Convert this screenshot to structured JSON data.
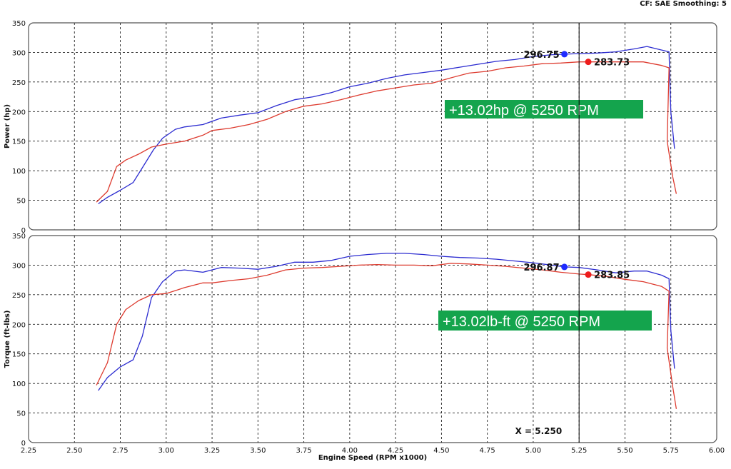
{
  "header": {
    "text": "CF: SAE  Smoothing: 5"
  },
  "chart_data": {
    "type": "line",
    "xlabel": "Engine Speed (RPM x1000)",
    "xlim": [
      2.25,
      6.0
    ],
    "x_ticks": [
      "2.25",
      "2.50",
      "2.75",
      "3.00",
      "3.25",
      "3.50",
      "3.75",
      "4.00",
      "4.25",
      "4.50",
      "4.75",
      "5.00",
      "5.25",
      "5.50",
      "5.75",
      "6.00"
    ],
    "cursor": {
      "x": 5.25,
      "label": "X = 5.250"
    },
    "colors": {
      "blue": "#2b2bd0",
      "red": "#dd3a2e",
      "gain_box": "#14a44d"
    },
    "panels": [
      {
        "id": "power",
        "ylabel": "Power (hp)",
        "ylim": [
          0,
          350
        ],
        "y_ticks": [
          "0",
          "50",
          "100",
          "150",
          "200",
          "250",
          "300",
          "350"
        ],
        "series": [
          {
            "color": "blue",
            "x": [
              2.63,
              2.68,
              2.75,
              2.82,
              2.87,
              2.93,
              2.98,
              3.05,
              3.1,
              3.2,
              3.3,
              3.4,
              3.5,
              3.6,
              3.7,
              3.8,
              3.9,
              4.0,
              4.1,
              4.2,
              4.3,
              4.4,
              4.5,
              4.6,
              4.7,
              4.8,
              4.9,
              5.0,
              5.1,
              5.17,
              5.25,
              5.35,
              5.45,
              5.55,
              5.62,
              5.7,
              5.74,
              5.75,
              5.77
            ],
            "y": [
              44,
              55,
              67,
              80,
              105,
              135,
              155,
              170,
              174,
              178,
              189,
              194,
              198,
              210,
              220,
              225,
              232,
              242,
              248,
              256,
              262,
              266,
              270,
              275,
              280,
              285,
              288,
              293,
              296,
              297,
              298,
              299,
              301,
              306,
              310,
              304,
              301,
              200,
              137
            ]
          },
          {
            "color": "red",
            "x": [
              2.62,
              2.68,
              2.73,
              2.78,
              2.85,
              2.92,
              3.0,
              3.1,
              3.2,
              3.25,
              3.35,
              3.45,
              3.55,
              3.65,
              3.75,
              3.85,
              3.95,
              4.05,
              4.15,
              4.25,
              4.35,
              4.45,
              4.55,
              4.65,
              4.75,
              4.85,
              4.95,
              5.05,
              5.15,
              5.25,
              5.3,
              5.4,
              5.5,
              5.6,
              5.7,
              5.74,
              5.73,
              5.76,
              5.78
            ],
            "y": [
              47,
              65,
              107,
              118,
              128,
              140,
              145,
              150,
              160,
              168,
              172,
              178,
              187,
              200,
              209,
              213,
              220,
              228,
              235,
              240,
              245,
              248,
              257,
              265,
              268,
              274,
              277,
              281,
              282,
              284,
              284,
              284,
              284,
              284,
              278,
              274,
              150,
              90,
              61
            ]
          }
        ],
        "markers": [
          {
            "label": "296.75",
            "x": 5.17,
            "y": 297,
            "color": "blue"
          },
          {
            "label": "283.73",
            "x": 5.3,
            "y": 284,
            "color": "red"
          }
        ],
        "gain_text": "+13.02hp @ 5250 RPM"
      },
      {
        "id": "torque",
        "ylabel": "Torque (ft-lbs)",
        "ylim": [
          0,
          350
        ],
        "y_ticks": [
          "0",
          "50",
          "100",
          "150",
          "200",
          "250",
          "300",
          "350"
        ],
        "series": [
          {
            "color": "blue",
            "x": [
              2.63,
              2.68,
              2.75,
              2.82,
              2.87,
              2.92,
              2.98,
              3.05,
              3.1,
              3.2,
              3.3,
              3.4,
              3.5,
              3.6,
              3.7,
              3.8,
              3.9,
              4.0,
              4.1,
              4.2,
              4.3,
              4.4,
              4.5,
              4.6,
              4.7,
              4.8,
              4.9,
              5.0,
              5.1,
              5.17,
              5.25,
              5.35,
              5.45,
              5.55,
              5.62,
              5.7,
              5.74,
              5.75,
              5.77
            ],
            "y": [
              88,
              110,
              128,
              140,
              180,
              245,
              272,
              290,
              292,
              288,
              296,
              295,
              293,
              298,
              305,
              305,
              308,
              315,
              318,
              320,
              320,
              318,
              315,
              313,
              312,
              310,
              307,
              304,
              300,
              297,
              296,
              292,
              287,
              290,
              290,
              283,
              277,
              190,
              125
            ]
          },
          {
            "color": "red",
            "x": [
              2.62,
              2.68,
              2.73,
              2.78,
              2.85,
              2.92,
              3.0,
              3.1,
              3.2,
              3.25,
              3.35,
              3.45,
              3.55,
              3.65,
              3.75,
              3.85,
              3.95,
              4.05,
              4.15,
              4.25,
              4.35,
              4.45,
              4.55,
              4.65,
              4.75,
              4.85,
              4.95,
              5.05,
              5.15,
              5.25,
              5.3,
              5.4,
              5.5,
              5.6,
              5.7,
              5.74,
              5.73,
              5.76,
              5.78
            ],
            "y": [
              97,
              135,
              200,
              225,
              240,
              250,
              252,
              262,
              270,
              270,
              274,
              277,
              283,
              292,
              295,
              296,
              298,
              300,
              301,
              300,
              300,
              299,
              303,
              302,
              300,
              298,
              295,
              292,
              288,
              285,
              284,
              281,
              276,
              272,
              264,
              256,
              160,
              95,
              57
            ]
          }
        ],
        "markers": [
          {
            "label": "296.87",
            "x": 5.17,
            "y": 297,
            "color": "blue"
          },
          {
            "label": "283.85",
            "x": 5.3,
            "y": 284,
            "color": "red"
          }
        ],
        "gain_text": "+13.02lb-ft @ 5250 RPM"
      }
    ]
  }
}
